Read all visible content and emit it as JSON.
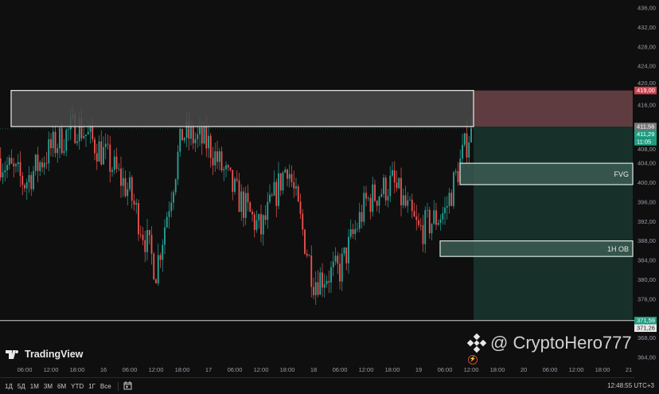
{
  "chart_data": {
    "type": "candlestick",
    "instrument_note": "",
    "y_axis": {
      "range": [
        364,
        436
      ],
      "ticks": [
        436,
        432,
        428,
        424,
        420,
        416,
        408,
        404,
        400,
        396,
        392,
        388,
        384,
        380,
        376,
        368,
        364
      ],
      "tick_labels": [
        "436,00",
        "432,00",
        "428,00",
        "424,00",
        "420,00",
        "416,00",
        "408,00",
        "404,00",
        "400,00",
        "396,00",
        "392,00",
        "388,00",
        "384,00",
        "380,00",
        "376,00",
        "368,00",
        "364,00"
      ]
    },
    "x_axis": {
      "tick_labels": [
        "06:00",
        "12:00",
        "18:00",
        "16",
        "06:00",
        "12:00",
        "18:00",
        "17",
        "06:00",
        "12:00",
        "18:00",
        "18",
        "06:00",
        "12:00",
        "18:00",
        "19",
        "06:00",
        "12:00",
        "18:00",
        "20",
        "06:00",
        "12:00",
        "18:00",
        "21"
      ],
      "tick_hours": [
        6,
        12,
        18,
        24,
        30,
        36,
        42,
        48,
        54,
        60,
        66,
        72,
        78,
        84,
        90,
        96,
        102,
        108,
        114,
        120,
        126,
        132,
        138,
        144
      ]
    },
    "price_path": [
      {
        "t": "15 00:00",
        "p": 405
      },
      {
        "t": "15 06:00",
        "p": 400
      },
      {
        "t": "15 12:00",
        "p": 407
      },
      {
        "t": "15 18:00",
        "p": 412
      },
      {
        "t": "16 00:00",
        "p": 406
      },
      {
        "t": "16 06:00",
        "p": 398
      },
      {
        "t": "16 12:00",
        "p": 382
      },
      {
        "t": "16 18:00",
        "p": 410
      },
      {
        "t": "17 00:00",
        "p": 408
      },
      {
        "t": "17 06:00",
        "p": 398
      },
      {
        "t": "17 12:00",
        "p": 390
      },
      {
        "t": "17 18:00",
        "p": 404
      },
      {
        "t": "18 00:00",
        "p": 380
      },
      {
        "t": "18 06:00",
        "p": 382
      },
      {
        "t": "18 12:00",
        "p": 396
      },
      {
        "t": "18 18:00",
        "p": 400
      },
      {
        "t": "19 00:00",
        "p": 390
      },
      {
        "t": "19 06:00",
        "p": 394
      },
      {
        "t": "19 12:00",
        "p": 411.29
      }
    ],
    "price_tags": [
      {
        "label": "419,00",
        "bg": "#d1434f",
        "fg": "#ffffff",
        "price": 419
      },
      {
        "label": "411,56",
        "bg": "#7a7a7a",
        "fg": "#ffffff",
        "price": 411.56
      },
      {
        "label": "411,29",
        "bg": "#1f9e82",
        "fg": "#ffffff",
        "price": 411.29
      },
      {
        "label": "11:05",
        "bg": "#1f9e82",
        "fg": "#ffffff",
        "price": 410.2
      },
      {
        "label": "371,59",
        "bg": "#1f9e82",
        "fg": "#ffffff",
        "price": 371.59
      },
      {
        "label": "371,26",
        "bg": "#e8e8e8",
        "fg": "#222222",
        "price": 371.26
      }
    ],
    "zones": [
      {
        "name": "range-box",
        "top": 419,
        "bottom": 411.56,
        "fill": "#4a4a4a",
        "stroke": "#e0e0e0",
        "label": ""
      },
      {
        "name": "stop-zone",
        "top": 419,
        "bottom": 411.56,
        "fill": "#5e3c3f",
        "label": ""
      },
      {
        "name": "target-zone",
        "top": 411.56,
        "bottom": 371.59,
        "fill": "#17302a",
        "label": ""
      },
      {
        "name": "fvg-box",
        "top": 404,
        "bottom": 399.6,
        "fill": "#3a5a52",
        "stroke": "#d8e8e0",
        "label": "FVG"
      },
      {
        "name": "ob-box",
        "top": 388,
        "bottom": 384.8,
        "fill": "#3a5a52",
        "stroke": "#d8e8e0",
        "label": "1H OB"
      }
    ],
    "colors": {
      "up": "#26a69a",
      "down": "#ef5350",
      "background": "#0f0f0f"
    }
  },
  "branding": {
    "logo_text": "TradingView"
  },
  "bottom_bar": {
    "ranges": [
      "1Д",
      "5Д",
      "1М",
      "3М",
      "6М",
      "YTD",
      "1Г",
      "Все"
    ],
    "clock": "12:48:55 UTC+3"
  },
  "watermark": {
    "text": "@ CryptoHero777"
  }
}
